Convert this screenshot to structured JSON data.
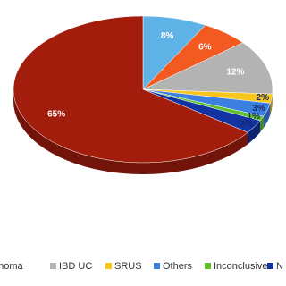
{
  "chart_data": {
    "type": "pie",
    "categories": [
      null,
      null,
      "IBD UC",
      "SRUS",
      "Others",
      "Inconclusive",
      "N",
      "enoma"
    ],
    "values": [
      8,
      6,
      12,
      2,
      3,
      1,
      3,
      65
    ],
    "value_labels": [
      "8%",
      "6%",
      "12%",
      "2%",
      "3%",
      "1%",
      "3%",
      "65%"
    ],
    "colors": [
      "#5eb2e6",
      "#f25a22",
      "#b3b3b3",
      "#f7c51b",
      "#3b7fe2",
      "#5ec12b",
      "#1234a3",
      "#a31d0d"
    ],
    "legend": "bottom"
  }
}
